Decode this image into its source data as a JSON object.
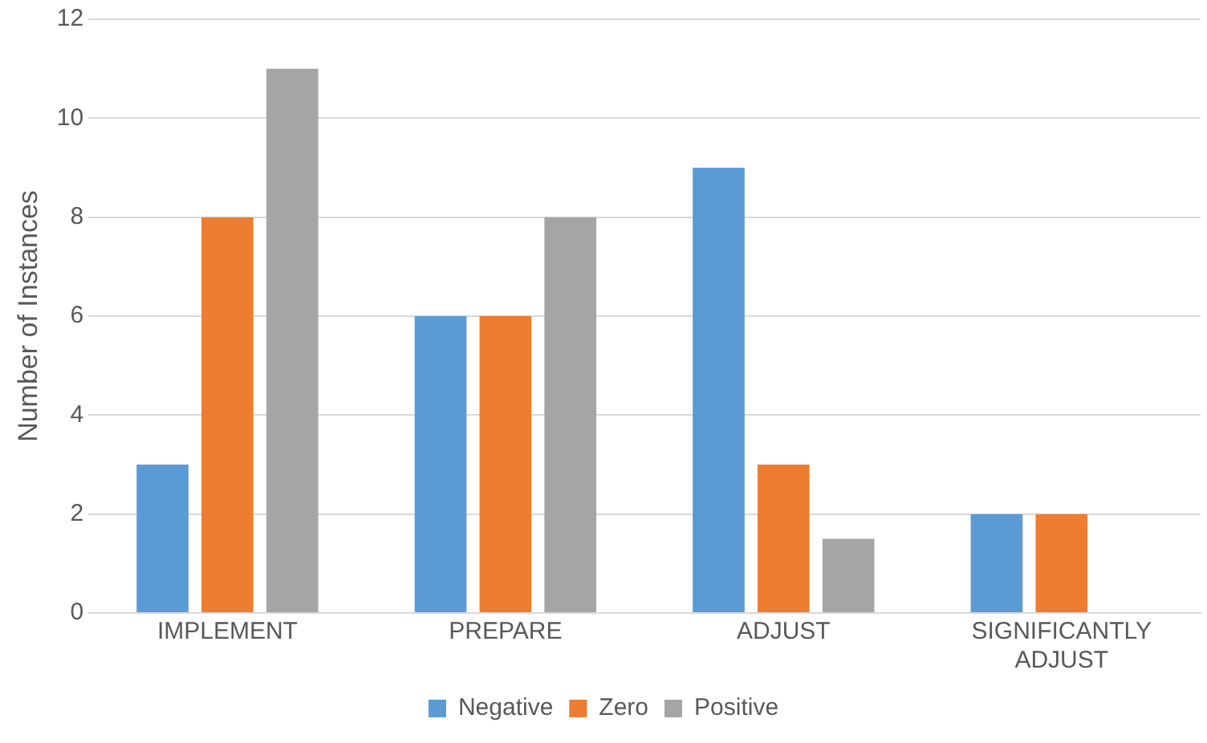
{
  "chart_data": {
    "type": "bar",
    "ylabel": "Number of Instances",
    "categories": [
      "IMPLEMENT",
      "PREPARE",
      "ADJUST",
      "SIGNIFICANTLY ADJUST"
    ],
    "series": [
      {
        "name": "Negative",
        "color": "#5b9bd5",
        "values": [
          3,
          6,
          9,
          2
        ]
      },
      {
        "name": "Zero",
        "color": "#ed7d31",
        "values": [
          8,
          6,
          3,
          2
        ]
      },
      {
        "name": "Positive",
        "color": "#a5a5a5",
        "values": [
          11,
          8,
          1.5,
          0
        ]
      }
    ],
    "ylim": [
      0,
      12
    ],
    "yticks": [
      0,
      2,
      4,
      6,
      8,
      10,
      12
    ],
    "grid": "y",
    "legend": "bottom"
  }
}
